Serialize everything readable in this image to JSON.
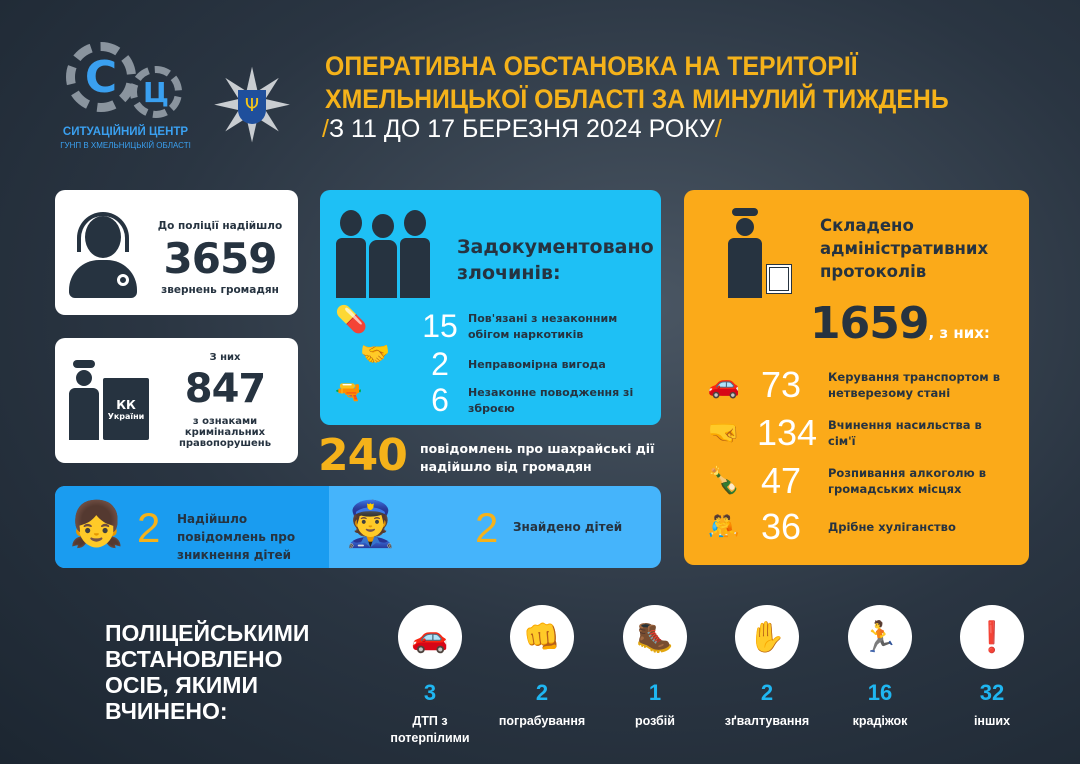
{
  "logo": {
    "name": "СИТУАЦІЙНИЙ ЦЕНТР",
    "subtitle": "ГУНП В ХМЕЛЬНИЦЬКІЙ ОБЛАСТІ",
    "letters": "СЦ"
  },
  "header": {
    "title_line1": "ОПЕРАТИВНА ОБСТАНОВКА НА ТЕРИТОРІЇ",
    "title_line2": "ХМЕЛЬНИЦЬКОЇ ОБЛАСТІ ЗА МИНУЛИЙ ТИЖДЕНЬ",
    "period": "З 11 ДО 17 БЕРЕЗНЯ 2024 РОКУ",
    "slash": "/"
  },
  "calls": {
    "label": "До поліції надійшло",
    "value": "3659",
    "sublabel": "звернень громадян"
  },
  "criminal": {
    "label": "З них",
    "value": "847",
    "sublabel": "з ознаками кримінальних правопорушень",
    "book": "КК",
    "book2": "України"
  },
  "crimes": {
    "title": "Задокументовано злочинів:",
    "items": [
      {
        "value": "15",
        "label": "Пов'язані з незаконним обігом наркотиків"
      },
      {
        "value": "2",
        "label": "Неправомірна вигода"
      },
      {
        "value": "6",
        "label": "Незаконне поводження зі зброєю"
      }
    ]
  },
  "fraud": {
    "value": "240",
    "label": "повідомлень про шахрайські дії надійшло від громадян"
  },
  "children": {
    "missing": {
      "value": "2",
      "label": "Надійшло повідомлень про зникнення дітей"
    },
    "found": {
      "value": "2",
      "label": "Знайдено дітей"
    }
  },
  "admin": {
    "title": "Складено адміністративних протоколів",
    "value": "1659",
    "suffix": ", з них:",
    "items": [
      {
        "value": "73",
        "label": "Керування транспортом в нетверезому стані",
        "icon": "car-crash-icon"
      },
      {
        "value": "134",
        "label": "Вчинення насильства в сім'ї",
        "icon": "domestic-violence-icon"
      },
      {
        "value": "47",
        "label": "Розпивання алкоголю в громадських місцях",
        "icon": "drinking-icon"
      },
      {
        "value": "36",
        "label": "Дрібне хуліганство",
        "icon": "hooliganism-icon"
      }
    ]
  },
  "persons": {
    "title": "ПОЛІЦЕЙСЬКИМИ ВСТАНОВЛЕНО ОСІБ, ЯКИМИ ВЧИНЕНО:",
    "items": [
      {
        "value": "3",
        "label": "ДТП з потерпілими",
        "icon": "car-crash-icon",
        "glyph": "🚗"
      },
      {
        "value": "2",
        "label": "пограбування",
        "icon": "robbery-icon",
        "glyph": "👊"
      },
      {
        "value": "1",
        "label": "розбій",
        "icon": "assault-icon",
        "glyph": "🥾"
      },
      {
        "value": "2",
        "label": "зґвалтування",
        "icon": "rape-icon",
        "glyph": "✋"
      },
      {
        "value": "16",
        "label": "крадіжок",
        "icon": "theft-icon",
        "glyph": "🏃"
      },
      {
        "value": "32",
        "label": "інших",
        "icon": "other-crimes-icon",
        "glyph": "❗"
      }
    ]
  },
  "colors": {
    "yellow": "#f5b21a",
    "cyan": "#1ec0f5",
    "blue": "#1a9cf0",
    "lightblue": "#45b4fb",
    "orange": "#fbaa19",
    "dark": "#263340"
  }
}
